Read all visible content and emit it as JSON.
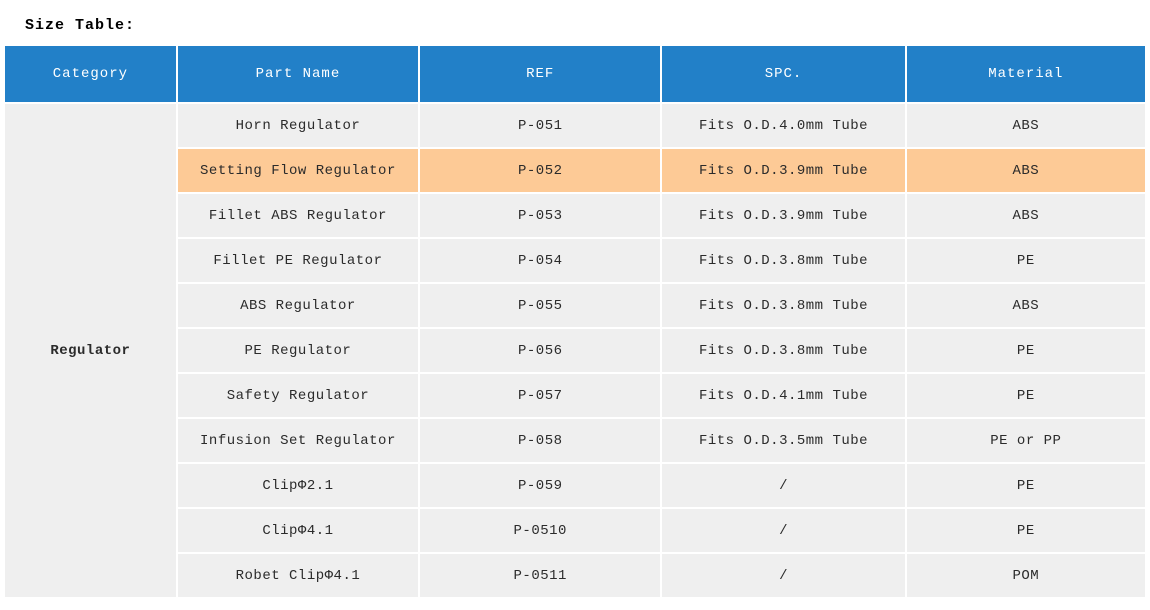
{
  "title": "Size Table:",
  "colors": {
    "header_bg": "#2280c8",
    "header_text": "#ffffff",
    "row_bg": "#efefef",
    "highlight_bg": "#fdca96",
    "body_text": "#2b2b2b"
  },
  "table": {
    "columns": [
      "Category",
      "Part Name",
      "REF",
      "SPC.",
      "Material"
    ],
    "category": "Regulator",
    "highlighted_row_index": 1,
    "rows": [
      {
        "part_name": "Horn Regulator",
        "ref": "P-051",
        "spc": "Fits O.D.4.0mm Tube",
        "material": "ABS"
      },
      {
        "part_name": "Setting Flow Regulator",
        "ref": "P-052",
        "spc": "Fits O.D.3.9mm Tube",
        "material": "ABS"
      },
      {
        "part_name": "Fillet ABS Regulator",
        "ref": "P-053",
        "spc": "Fits O.D.3.9mm Tube",
        "material": "ABS"
      },
      {
        "part_name": "Fillet PE Regulator",
        "ref": "P-054",
        "spc": "Fits O.D.3.8mm Tube",
        "material": "PE"
      },
      {
        "part_name": "ABS Regulator",
        "ref": "P-055",
        "spc": "Fits O.D.3.8mm Tube",
        "material": "ABS"
      },
      {
        "part_name": "PE Regulator",
        "ref": "P-056",
        "spc": "Fits O.D.3.8mm Tube",
        "material": "PE"
      },
      {
        "part_name": "Safety Regulator",
        "ref": "P-057",
        "spc": "Fits O.D.4.1mm Tube",
        "material": "PE"
      },
      {
        "part_name": "Infusion Set Regulator",
        "ref": "P-058",
        "spc": "Fits O.D.3.5mm Tube",
        "material": "PE or PP"
      },
      {
        "part_name": "ClipΦ2.1",
        "ref": "P-059",
        "spc": "/",
        "material": "PE"
      },
      {
        "part_name": "ClipΦ4.1",
        "ref": "P-0510",
        "spc": "/",
        "material": "PE"
      },
      {
        "part_name": "Robet ClipΦ4.1",
        "ref": "P-0511",
        "spc": "/",
        "material": "POM"
      }
    ]
  }
}
